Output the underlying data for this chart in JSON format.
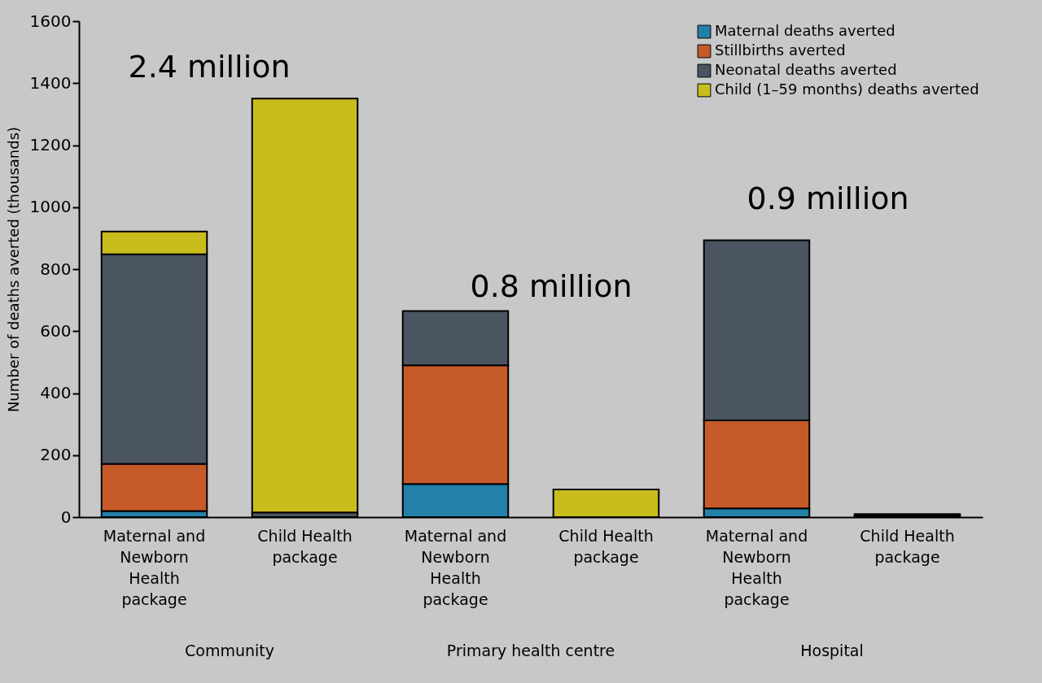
{
  "chart_data": {
    "type": "bar",
    "stacked": true,
    "ylabel": "Number of deaths averted (thousands)",
    "categories": [
      "Maternal and Newborn Health package",
      "Child Health package",
      "Maternal and Newborn Health package",
      "Child Health package",
      "Maternal and Newborn Health package",
      "Child Health package"
    ],
    "series": [
      {
        "name": "Maternal deaths averted",
        "color": "#2380a8",
        "values": [
          20,
          0,
          107,
          0,
          28,
          0
        ]
      },
      {
        "name": "Stillbirths averted",
        "color": "#c65a29",
        "values": [
          152,
          0,
          383,
          0,
          284,
          0
        ]
      },
      {
        "name": "Neonatal deaths averted",
        "color": "#4a5561",
        "values": [
          676,
          15,
          175,
          0,
          581,
          5
        ]
      },
      {
        "name": "Child (1–59 months) deaths averted",
        "color": "#c9bd1e",
        "values": [
          73,
          1335,
          0,
          89,
          0,
          5
        ]
      }
    ],
    "ylim": [
      0,
      1600
    ],
    "yticks": [
      0,
      200,
      400,
      600,
      800,
      1000,
      1200,
      1400,
      1600
    ],
    "grid": false,
    "legend": "top right",
    "annotations": [
      "2.4 million",
      "0.8 million",
      "0.9 million",
      "Community",
      "Primary health centre",
      "Hospital"
    ]
  }
}
